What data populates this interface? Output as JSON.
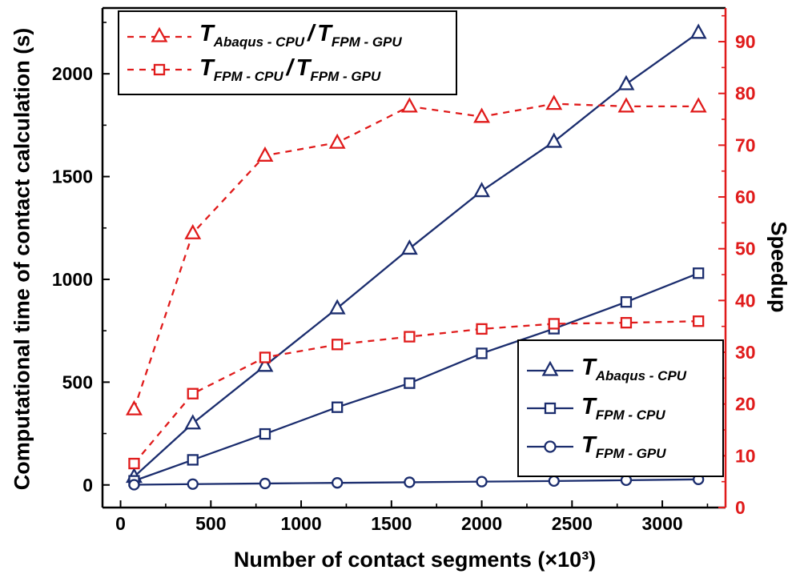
{
  "chart_data": {
    "type": "line",
    "title": "",
    "xlabel": "Number of contact segments (×10³)",
    "ylabel_left": "Computational time of contact calculation (s)",
    "ylabel_right": "Speedup",
    "x_range": [
      -100,
      3350
    ],
    "y_left_range": [
      -110,
      2320
    ],
    "y_right_range": [
      0,
      96.5
    ],
    "x_ticks": [
      0,
      500,
      1000,
      1500,
      2000,
      2500,
      3000
    ],
    "x_minor_ticks": [
      250,
      750,
      1250,
      1750,
      2250,
      2750,
      3250
    ],
    "y_left_ticks": [
      0,
      500,
      1000,
      1500,
      2000
    ],
    "y_left_minor_ticks": [
      250,
      750,
      1250,
      1750,
      2250
    ],
    "y_right_ticks": [
      0,
      10,
      20,
      30,
      40,
      50,
      60,
      70,
      80,
      90
    ],
    "y_right_minor_ticks": [
      5,
      15,
      25,
      35,
      45,
      55,
      65,
      75,
      85,
      95
    ],
    "x": [
      75,
      400,
      800,
      1200,
      1600,
      2000,
      2400,
      2800,
      3200
    ],
    "series": [
      {
        "id": "T-Abaqus-CPU",
        "name": "T_Abaqus-CPU",
        "axis": "left",
        "color": "#1b2d6e",
        "style": "solid",
        "marker": "triangle",
        "values": [
          40,
          300,
          580,
          860,
          1150,
          1430,
          1670,
          1950,
          2200
        ]
      },
      {
        "id": "T-FPM-CPU",
        "name": "T_FPM-CPU",
        "axis": "left",
        "color": "#1b2d6e",
        "style": "solid",
        "marker": "square",
        "values": [
          20,
          122,
          248,
          378,
          495,
          640,
          760,
          890,
          1030
        ]
      },
      {
        "id": "T-FPM-GPU",
        "name": "T_FPM-GPU",
        "axis": "left",
        "color": "#1b2d6e",
        "style": "solid",
        "marker": "circle",
        "values": [
          1,
          4,
          7,
          10,
          13,
          16,
          19,
          23,
          27
        ]
      },
      {
        "id": "speedup-abaqus-cpu-over-fpm-gpu",
        "name": "T_Abaqus-CPU / T_FPM-GPU",
        "axis": "right",
        "color": "#e01b1b",
        "style": "dashed",
        "marker": "triangle",
        "values": [
          19,
          53,
          68,
          70.5,
          77.5,
          75.5,
          78,
          77.5,
          77.5
        ]
      },
      {
        "id": "speedup-fpm-cpu-over-fpm-gpu",
        "name": "T_FPM-CPU / T_FPM-GPU",
        "axis": "right",
        "color": "#e01b1b",
        "style": "dashed",
        "marker": "square",
        "values": [
          8.5,
          22,
          29,
          31.5,
          33,
          34.5,
          35.5,
          35.7,
          36
        ]
      }
    ],
    "colors": {
      "navy": "#1b2d6e",
      "red": "#e01b1b",
      "axis": "#000000"
    },
    "legend_positions": {
      "speedup": "top-left",
      "time": "middle-right"
    },
    "grid": false
  },
  "legend_speedup": {
    "items": [
      {
        "t1": "T",
        "s1": "Abaqus - CPU",
        "sep": "/",
        "t2": "T",
        "s2": "FPM - GPU",
        "marker": "triangle"
      },
      {
        "t1": "T",
        "s1": "FPM - CPU",
        "sep": "/",
        "t2": "T",
        "s2": "FPM - GPU",
        "marker": "square"
      }
    ]
  },
  "legend_time": {
    "items": [
      {
        "t": "T",
        "s": "Abaqus - CPU",
        "marker": "triangle"
      },
      {
        "t": "T",
        "s": "FPM - CPU",
        "marker": "square"
      },
      {
        "t": "T",
        "s": "FPM - GPU",
        "marker": "circle"
      }
    ]
  }
}
